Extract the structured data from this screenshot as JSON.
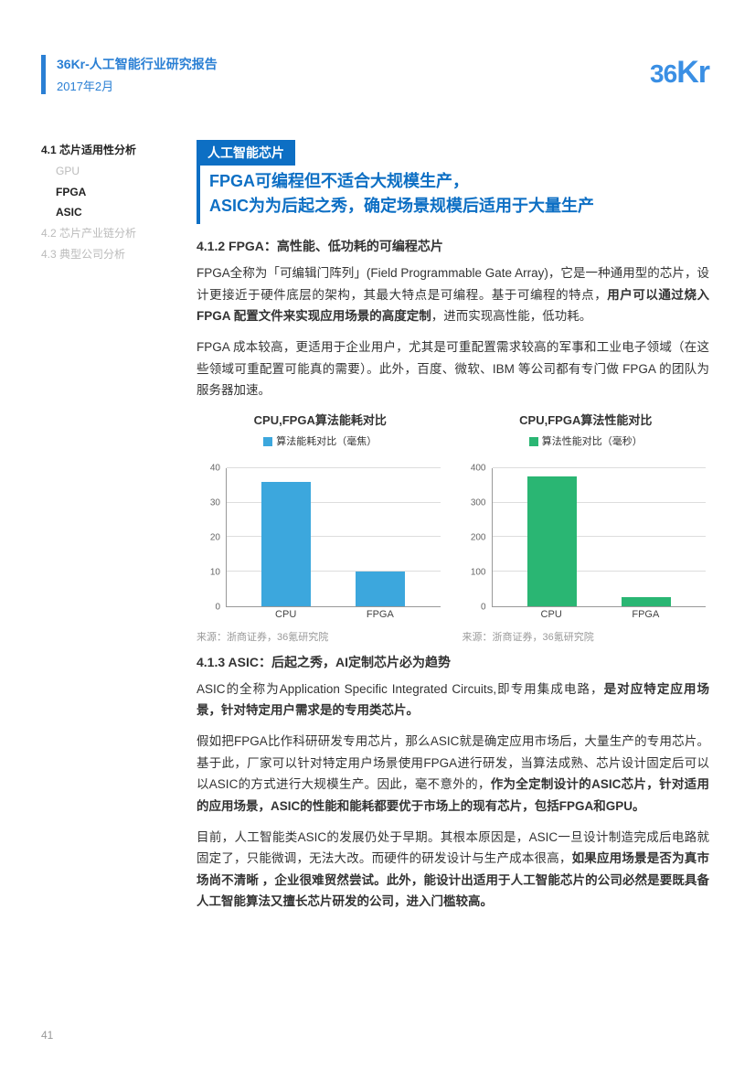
{
  "header": {
    "title": "36Kr-人工智能行业研究报告",
    "date": "2017年2月",
    "logo_text": "36",
    "logo_k": "Kr"
  },
  "toc": {
    "s41": "4.1 芯片适用性分析",
    "gpu": "GPU",
    "fpga": "FPGA",
    "asic": "ASIC",
    "s42": "4.2 芯片产业链分析",
    "s43": "4.3 典型公司分析"
  },
  "tag": "人工智能芯片",
  "headline1": "FPGA可编程但不适合大规模生产，",
  "headline2": "ASIC为为后起之秀，确定场景规模后适用于大量生产",
  "sec412": "4.1.2 FPGA：高性能、低功耗的可编程芯片",
  "p1a": "FPGA全称为「可编辑门阵列」(Field Programmable Gate Array)，它是一种通用型的芯片，设计更接近于硬件底层的架构，其最大特点是可编程。基于可编程的特点，",
  "p1b": "用户可以通过烧入FPGA 配置文件来实现应用场景的高度定制",
  "p1c": "，进而实现高性能，低功耗。",
  "p2": "FPGA 成本较高，更适用于企业用户，尤其是可重配置需求较高的军事和工业电子领域（在这些领域可重配置可能真的需要）。此外，百度、微软、IBM 等公司都有专门做 FPGA 的团队为服务器加速。",
  "chart1": {
    "title": "CPU,FPGA算法能耗对比",
    "legend": "算法能耗对比（毫焦）",
    "categories": [
      "CPU",
      "FPGA"
    ],
    "values": [
      36,
      10
    ],
    "ymax": 40,
    "yticks": [
      0,
      10,
      20,
      30,
      40
    ],
    "color": "#3ca7dd",
    "source": "来源：浙商证券，36氪研究院"
  },
  "chart2": {
    "title": "CPU,FPGA算法性能对比",
    "legend": "算法性能对比（毫秒）",
    "categories": [
      "CPU",
      "FPGA"
    ],
    "values": [
      375,
      25
    ],
    "ymax": 400,
    "yticks": [
      0,
      100,
      200,
      300,
      400
    ],
    "color": "#2ab673",
    "source": "来源：浙商证券，36氪研究院"
  },
  "sec413": "4.1.3 ASIC：后起之秀，AI定制芯片必为趋势",
  "p3a": "ASIC的全称为Application Specific Integrated Circuits,即专用集成电路，",
  "p3b": "是对应特定应用场景，针对特定用户需求是的专用类芯片。",
  "p4a": "假如把FPGA比作科研研发专用芯片，那么ASIC就是确定应用市场后，大量生产的专用芯片。基于此，厂家可以针对特定用户场景使用FPGA进行研发，当算法成熟、芯片设计固定后可以以ASIC的方式进行大规模生产。因此，毫不意外的，",
  "p4b": "作为全定制设计的ASIC芯片，针对适用的应用场景，ASIC的性能和能耗都要优于市场上的现有芯片，包括FPGA和GPU。",
  "p5a": "目前，人工智能类ASIC的发展仍处于早期。其根本原因是，ASIC一旦设计制造完成后电路就固定了，只能微调，无法大改。而硬件的研发设计与生产成本很高，",
  "p5b": "如果应用场景是否为真市场尚不清晰 ，企业很难贸然尝试。此外，能设计出适用于人工智能芯片的公司必然是要既具备人工智能算法又擅长芯片研发的公司，进入门槛较高。",
  "page_num": "41"
}
